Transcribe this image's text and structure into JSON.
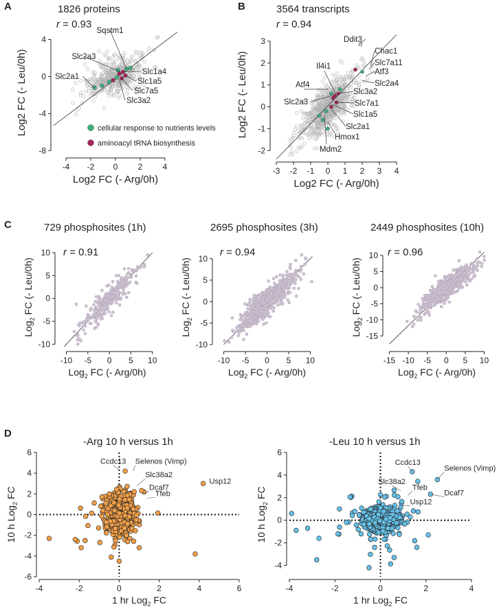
{
  "figure": {
    "colors": {
      "grey_point": "#b8b8b8",
      "purple_point": "#b3a6b8",
      "green": "#3bb07a",
      "magenta": "#a8245e",
      "orange": "#f2a04a",
      "blue": "#66c1e8",
      "text": "#222222"
    }
  },
  "chart_data": [
    {
      "id": "A",
      "panel_label": "A",
      "type": "scatter",
      "title": "1826 proteins",
      "r_text": "r = 0.93",
      "xlabel": "Log2 FC (- Arg/0h)",
      "ylabel": "Log2 FC (- Leu/0h)",
      "xlim": [
        -5,
        5
      ],
      "ylim": [
        -8.5,
        5
      ],
      "xticks": [
        -4,
        -2,
        0,
        2,
        4
      ],
      "yticks": [
        -8,
        -4,
        0,
        4
      ],
      "diagonal": [
        [
          -5,
          -5.3
        ],
        [
          5,
          4.8
        ]
      ],
      "annotations": [
        {
          "name": "Sqstm1",
          "x": 1.5,
          "y": 2.6,
          "color": "green"
        },
        {
          "name": "Slc2a3",
          "x": -0.4,
          "y": 1.0,
          "color": "black"
        },
        {
          "name": "Slc2a1",
          "x": -2.8,
          "y": 0.0,
          "color": "green"
        },
        {
          "name": "Slc1a4",
          "x": 1.7,
          "y": 0.4,
          "color": "black"
        },
        {
          "name": "Slc1a5",
          "x": 1.9,
          "y": -0.4,
          "color": "black"
        },
        {
          "name": "Slc7a5",
          "x": 1.8,
          "y": -1.1,
          "color": "black"
        },
        {
          "name": "Slc3a2",
          "x": 1.6,
          "y": -1.8,
          "color": "black"
        }
      ],
      "legend": [
        {
          "label": "cellular response to nutrients levels",
          "color": "green"
        },
        {
          "label": "aminoacyl tRNA biosynthesis",
          "color": "magenta"
        }
      ]
    },
    {
      "id": "B",
      "panel_label": "B",
      "type": "scatter",
      "title": "3564 transcripts",
      "r_text": "r = 0.94",
      "xlabel": "Log2 FC (- Arg/0h)",
      "ylabel": "Log2 FC (- Leu/0h)",
      "xlim": [
        -3.2,
        4.2
      ],
      "ylim": [
        -2.4,
        3.5
      ],
      "xticks": [
        -3,
        -2,
        -1,
        0,
        1,
        2,
        3,
        4
      ],
      "yticks": [
        -2,
        -1,
        0,
        1,
        2,
        3
      ],
      "diagonal": [
        [
          -3.0,
          -2.4
        ],
        [
          4.0,
          3.3
        ]
      ],
      "annotations": [
        {
          "name": "Ddit3",
          "x": 1.2,
          "y": 2.9,
          "color": "black"
        },
        {
          "name": "Chac1",
          "x": 2.9,
          "y": 2.2,
          "color": "black"
        },
        {
          "name": "Slc7a11",
          "x": 2.9,
          "y": 1.8,
          "color": "black"
        },
        {
          "name": "Il4i1",
          "x": 0.0,
          "y": 1.55,
          "color": "black"
        },
        {
          "name": "Atf3",
          "x": 2.9,
          "y": 1.4,
          "color": "green"
        },
        {
          "name": "Atf4",
          "x": -0.8,
          "y": 1.0,
          "color": "green"
        },
        {
          "name": "Slc2a4",
          "x": 2.9,
          "y": 0.95,
          "color": "black"
        },
        {
          "name": "Slc2a3",
          "x": -1.2,
          "y": 0.65,
          "color": "black"
        },
        {
          "name": "Slc3a2",
          "x": 1.6,
          "y": 0.5,
          "color": "black"
        },
        {
          "name": "Slc7a1",
          "x": 1.6,
          "y": 0.0,
          "color": "black"
        },
        {
          "name": "Slc1a5",
          "x": 1.6,
          "y": -0.4,
          "color": "black"
        },
        {
          "name": "Slc2a1",
          "x": 1.3,
          "y": -0.9,
          "color": "green"
        },
        {
          "name": "Hmox1",
          "x": 0.8,
          "y": -1.4,
          "color": "green"
        },
        {
          "name": "Mdm2",
          "x": -0.2,
          "y": -1.7,
          "color": "green"
        }
      ]
    },
    {
      "id": "C1",
      "panel_label": "C",
      "type": "scatter",
      "title": "729 phosphosites (1h)",
      "r_text": "r = 0.91",
      "xlabel_main": "Log",
      "xlabel_sub": "2",
      "xlabel_rest": " FC (- Arg/0h)",
      "ylabel_main": "Log",
      "ylabel_sub": "2",
      "ylabel_rest": " FC (- Leu/0h)",
      "xlim": [
        -12,
        11
      ],
      "ylim": [
        -11,
        11.5
      ],
      "xticks": [
        -10,
        -5,
        0,
        5,
        10
      ],
      "yticks": [
        -10,
        -5,
        0,
        5,
        10
      ],
      "diagonal": [
        [
          -10.5,
          -10.5
        ],
        [
          10,
          10
        ]
      ]
    },
    {
      "id": "C2",
      "panel_label": "",
      "type": "scatter",
      "title": "2695 phosphosites (3h)",
      "r_text": "r = 0.94",
      "xlabel_main": "Log",
      "xlabel_sub": "2",
      "xlabel_rest": " FC (- Arg/0h)",
      "ylabel_main": "Log",
      "ylabel_sub": "2",
      "ylabel_rest": " FC (- Leu/0h)",
      "xlim": [
        -12,
        12
      ],
      "ylim": [
        -11,
        13
      ],
      "xticks": [
        -10,
        -5,
        0,
        5,
        10
      ],
      "yticks": [
        -10,
        -5,
        0,
        5,
        10
      ],
      "diagonal": [
        [
          -10,
          -10
        ],
        [
          10.5,
          10.5
        ]
      ]
    },
    {
      "id": "C3",
      "panel_label": "",
      "type": "scatter",
      "title": "2449 phosphosites (10h)",
      "r_text": "r = 0.96",
      "xlabel_main": "Log",
      "xlabel_sub": "2",
      "xlabel_rest": " FC (- Arg/0h)",
      "ylabel_main": "Log",
      "ylabel_sub": "2",
      "ylabel_rest": " FC (- Leu/0h)",
      "xlim": [
        -16,
        11
      ],
      "ylim": [
        -19,
        13
      ],
      "xticks": [
        -15,
        -10,
        -5,
        0,
        5,
        10
      ],
      "yticks": [
        -15,
        -10,
        -5,
        0,
        5,
        10
      ],
      "diagonal": [
        [
          -15,
          -17.5
        ],
        [
          10,
          11
        ]
      ]
    },
    {
      "id": "D1",
      "panel_label": "D",
      "type": "scatter",
      "title": "-Arg 10 h versus 1h",
      "xlabel_main": "1 hr Log",
      "xlabel_sub": "2",
      "xlabel_rest": " FC",
      "ylabel_main": "10 h Log",
      "ylabel_sub": "2",
      "ylabel_rest": " FC",
      "xlim": [
        -4,
        6
      ],
      "ylim": [
        -6,
        6
      ],
      "xticks": [
        -4,
        -2,
        0,
        2,
        4,
        6
      ],
      "yticks": [
        -6,
        -4,
        -2,
        0,
        2,
        4,
        6
      ],
      "annotations": [
        {
          "name": "Ccdc13",
          "x": 0.0,
          "y": 4.3,
          "px": -0.3,
          "py": 4.9
        },
        {
          "name": "Selenos (Vimp)",
          "x": 0.7,
          "y": 4.2,
          "px": 0.8,
          "py": 4.9
        },
        {
          "name": "Slc38a2",
          "x": 0.9,
          "y": 2.8,
          "px": 1.3,
          "py": 3.6
        },
        {
          "name": "Dcaf7",
          "x": 1.2,
          "y": 2.0,
          "px": 1.5,
          "py": 2.4
        },
        {
          "name": "Tfeb",
          "x": 1.4,
          "y": 1.6,
          "px": 1.8,
          "py": 1.8
        },
        {
          "name": "Usp12",
          "x": 4.2,
          "y": 3.0,
          "px": 4.3,
          "py": 3.0
        }
      ],
      "outliers": [
        [
          4.2,
          3.0
        ],
        [
          3.8,
          -3.8
        ],
        [
          -3.5,
          -2.3
        ],
        [
          -1.9,
          -3.2
        ],
        [
          -1.7,
          -2.5
        ],
        [
          -2.2,
          -2.4
        ],
        [
          1.0,
          -3.2
        ],
        [
          0.0,
          -4.5
        ],
        [
          0.3,
          4.2
        ],
        [
          -0.4,
          -4.1
        ]
      ]
    },
    {
      "id": "D2",
      "panel_label": "",
      "type": "scatter",
      "title": "-Leu 10 h versus 1h",
      "xlabel_main": "1 hr Log",
      "xlabel_sub": "2",
      "xlabel_rest": " FC",
      "ylabel_main": "10 h Log",
      "ylabel_sub": "2",
      "ylabel_rest": " FC",
      "xlim": [
        -4,
        4
      ],
      "ylim": [
        -5,
        6
      ],
      "xticks": [
        -4,
        -2,
        0,
        2,
        4
      ],
      "yticks": [
        -4,
        -2,
        0,
        2,
        4,
        6
      ],
      "annotations": [
        {
          "name": "Ccdc13",
          "x": 1.4,
          "y": 4.3,
          "px": 1.2,
          "py": 4.9
        },
        {
          "name": "Selenos (Vimp)",
          "x": 2.5,
          "y": 3.6,
          "px": 2.8,
          "py": 4.4
        },
        {
          "name": "Slc38a2",
          "x": 0.9,
          "y": 2.6,
          "px": 0.5,
          "py": 3.2
        },
        {
          "name": "Tfeb",
          "x": 1.2,
          "y": 2.2,
          "px": 1.4,
          "py": 2.7
        },
        {
          "name": "Dcaf7",
          "x": 2.2,
          "y": 2.3,
          "px": 2.8,
          "py": 2.2
        },
        {
          "name": "Usp12",
          "x": 0.9,
          "y": 1.3,
          "px": 1.3,
          "py": 1.4
        }
      ],
      "outliers": [
        [
          -3.7,
          -0.9
        ],
        [
          -2.8,
          -3.5
        ],
        [
          -3.9,
          0.6
        ],
        [
          -2.7,
          -1.6
        ],
        [
          2.5,
          3.6
        ],
        [
          1.4,
          4.3
        ],
        [
          2.2,
          2.3
        ],
        [
          -0.5,
          -4.2
        ],
        [
          0.6,
          -3.3
        ],
        [
          -1.8,
          1.0
        ],
        [
          1.6,
          -2.4
        ],
        [
          2.1,
          -1.3
        ],
        [
          -3.2,
          -0.7
        ]
      ]
    }
  ]
}
